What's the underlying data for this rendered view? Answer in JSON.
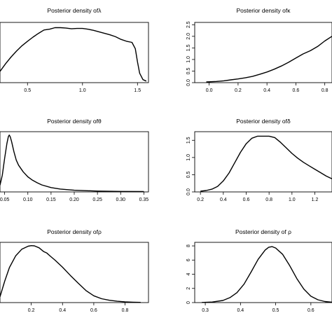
{
  "chart_data": [
    {
      "type": "line",
      "title": "Posterior density ofλ",
      "xlim": [
        0.25,
        1.6
      ],
      "ylim": [
        0,
        1.6
      ],
      "x_ticks": [
        "0.5",
        "1.0",
        "1.5"
      ],
      "x_tick_values": [
        0.5,
        1.0,
        1.5
      ],
      "y_ticks": [],
      "series": [
        {
          "x": [
            0.25,
            0.3,
            0.35,
            0.4,
            0.45,
            0.5,
            0.55,
            0.6,
            0.65,
            0.7,
            0.75,
            0.8,
            0.85,
            0.9,
            0.95,
            1.0,
            1.05,
            1.1,
            1.15,
            1.2,
            1.25,
            1.3,
            1.35,
            1.4,
            1.45,
            1.48,
            1.5,
            1.52,
            1.55,
            1.58
          ],
          "y": [
            0.3,
            0.5,
            0.68,
            0.84,
            0.98,
            1.1,
            1.21,
            1.31,
            1.4,
            1.42,
            1.46,
            1.46,
            1.45,
            1.43,
            1.44,
            1.44,
            1.42,
            1.39,
            1.35,
            1.31,
            1.27,
            1.22,
            1.15,
            1.1,
            1.07,
            0.9,
            0.55,
            0.25,
            0.08,
            0.04
          ]
        }
      ]
    },
    {
      "type": "line",
      "title": "Posterior density ofκ",
      "xlim": [
        -0.1,
        0.85
      ],
      "ylim": [
        0,
        2.6
      ],
      "x_ticks": [
        "0.0",
        "0.2",
        "0.4",
        "0.6",
        "0.8"
      ],
      "x_tick_values": [
        0.0,
        0.2,
        0.4,
        0.6,
        0.8
      ],
      "y_ticks": [
        "0.0",
        "0.5",
        "1.0",
        "1.5",
        "2.0",
        "2.5"
      ],
      "y_tick_values": [
        0.0,
        0.5,
        1.0,
        1.5,
        2.0,
        2.5
      ],
      "series": [
        {
          "x": [
            -0.02,
            0.05,
            0.1,
            0.15,
            0.2,
            0.25,
            0.3,
            0.35,
            0.4,
            0.45,
            0.5,
            0.55,
            0.6,
            0.65,
            0.7,
            0.75,
            0.8,
            0.85
          ],
          "y": [
            0.03,
            0.05,
            0.08,
            0.12,
            0.16,
            0.21,
            0.27,
            0.36,
            0.46,
            0.58,
            0.72,
            0.88,
            1.06,
            1.24,
            1.38,
            1.56,
            1.8,
            2.0
          ]
        }
      ]
    },
    {
      "type": "line",
      "title": "Posterior density ofθ",
      "xlim": [
        0.04,
        0.36
      ],
      "ylim": [
        0,
        36
      ],
      "x_ticks": [
        "0.05",
        "0.10",
        "0.15",
        "0.20",
        "0.25",
        "0.30",
        "0.35"
      ],
      "x_tick_values": [
        0.05,
        0.1,
        0.15,
        0.2,
        0.25,
        0.3,
        0.35
      ],
      "y_ticks": [],
      "series": [
        {
          "x": [
            0.04,
            0.045,
            0.05,
            0.055,
            0.058,
            0.06,
            0.062,
            0.065,
            0.07,
            0.075,
            0.08,
            0.09,
            0.1,
            0.11,
            0.12,
            0.13,
            0.15,
            0.17,
            0.2,
            0.25,
            0.3,
            0.35
          ],
          "y": [
            4,
            10,
            20,
            29,
            33,
            34,
            33,
            30,
            24,
            19,
            16,
            12,
            9,
            7,
            5.5,
            4.2,
            2.6,
            1.7,
            1.0,
            0.5,
            0.3,
            0.2
          ]
        }
      ]
    },
    {
      "type": "line",
      "title": "Posterior density ofδ",
      "xlim": [
        0.15,
        1.35
      ],
      "ylim": [
        0,
        1.75
      ],
      "x_ticks": [
        "0.2",
        "0.4",
        "0.6",
        "0.8",
        "1.0",
        "1.2"
      ],
      "x_tick_values": [
        0.2,
        0.4,
        0.6,
        0.8,
        1.0,
        1.2
      ],
      "y_ticks": [
        "0.0",
        "0.5",
        "1.0",
        "1.5"
      ],
      "y_tick_values": [
        0.0,
        0.5,
        1.0,
        1.5
      ],
      "series": [
        {
          "x": [
            0.2,
            0.25,
            0.3,
            0.35,
            0.4,
            0.45,
            0.5,
            0.55,
            0.6,
            0.65,
            0.7,
            0.75,
            0.8,
            0.85,
            0.9,
            0.95,
            1.0,
            1.05,
            1.1,
            1.15,
            1.2,
            1.25,
            1.3,
            1.35
          ],
          "y": [
            0.02,
            0.04,
            0.08,
            0.16,
            0.32,
            0.55,
            0.85,
            1.15,
            1.4,
            1.56,
            1.62,
            1.62,
            1.62,
            1.58,
            1.44,
            1.28,
            1.12,
            0.98,
            0.86,
            0.76,
            0.66,
            0.56,
            0.46,
            0.38
          ]
        }
      ]
    },
    {
      "type": "line",
      "title": "Posterior density ofρ",
      "xlim": [
        0.0,
        0.95
      ],
      "ylim": [
        0,
        3.1
      ],
      "x_ticks": [
        "0.2",
        "0.4",
        "0.6",
        "0.8"
      ],
      "x_tick_values": [
        0.2,
        0.4,
        0.6,
        0.8
      ],
      "y_ticks": [],
      "series": [
        {
          "x": [
            0.0,
            0.03,
            0.06,
            0.1,
            0.14,
            0.18,
            0.2,
            0.22,
            0.25,
            0.28,
            0.3,
            0.32,
            0.35,
            0.4,
            0.45,
            0.5,
            0.55,
            0.6,
            0.65,
            0.7,
            0.75,
            0.8,
            0.85,
            0.9
          ],
          "y": [
            0.3,
            1.1,
            1.8,
            2.4,
            2.75,
            2.9,
            2.93,
            2.92,
            2.82,
            2.62,
            2.55,
            2.4,
            2.2,
            1.82,
            1.4,
            1.0,
            0.62,
            0.35,
            0.2,
            0.12,
            0.07,
            0.04,
            0.02,
            0.01
          ]
        }
      ]
    },
    {
      "type": "line",
      "title": "Posterior density of ρ",
      "xlim": [
        0.27,
        0.66
      ],
      "ylim": [
        0,
        8.5
      ],
      "x_ticks": [
        "0.3",
        "0.4",
        "0.5",
        "0.6"
      ],
      "x_tick_values": [
        0.3,
        0.4,
        0.5,
        0.6
      ],
      "y_ticks": [
        "0",
        "2",
        "4",
        "6",
        "8"
      ],
      "y_tick_values": [
        0,
        2,
        4,
        6,
        8
      ],
      "series": [
        {
          "x": [
            0.29,
            0.32,
            0.35,
            0.37,
            0.39,
            0.41,
            0.43,
            0.45,
            0.47,
            0.48,
            0.49,
            0.5,
            0.52,
            0.54,
            0.56,
            0.58,
            0.6,
            0.62,
            0.64,
            0.66
          ],
          "y": [
            0.02,
            0.08,
            0.3,
            0.7,
            1.4,
            2.6,
            4.3,
            6.1,
            7.4,
            7.8,
            7.9,
            7.7,
            6.8,
            5.2,
            3.4,
            1.9,
            0.9,
            0.4,
            0.15,
            0.05
          ]
        }
      ]
    }
  ]
}
